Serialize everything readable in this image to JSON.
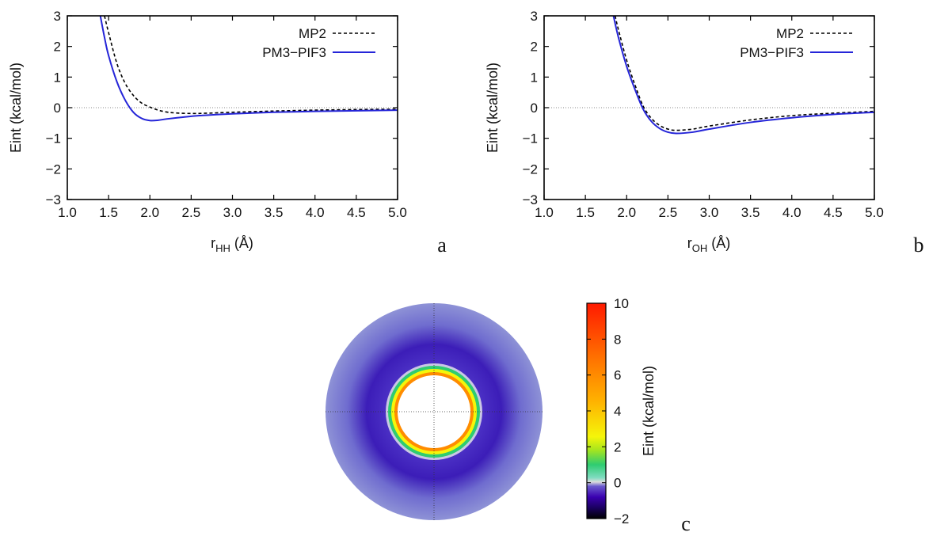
{
  "chart_data": [
    {
      "panel": "a",
      "type": "line",
      "xlabel": "r",
      "xlabel_sub": "HH",
      "xlabel_unit": "(Å)",
      "ylabel": "Eint (kcal/mol)",
      "xlim": [
        1.0,
        5.0
      ],
      "ylim": [
        -3,
        3
      ],
      "xticks": [
        "1.0",
        "1.5",
        "2.0",
        "2.5",
        "3.0",
        "3.5",
        "4.0",
        "4.5",
        "5.0"
      ],
      "yticks": [
        "3",
        "2",
        "1",
        "0",
        "−1",
        "−2",
        "−3"
      ],
      "legend": "top-right",
      "zero_line": true,
      "series": [
        {
          "name": "MP2",
          "style": "dashed",
          "color": "#000000",
          "x": [
            1.45,
            1.5,
            1.6,
            1.7,
            1.8,
            1.9,
            2.0,
            2.1,
            2.2,
            2.3,
            2.5,
            2.7,
            3.0,
            3.5,
            4.0,
            4.5,
            5.0
          ],
          "y": [
            3.0,
            2.45,
            1.45,
            0.8,
            0.4,
            0.15,
            0.02,
            -0.08,
            -0.14,
            -0.17,
            -0.19,
            -0.18,
            -0.15,
            -0.11,
            -0.08,
            -0.06,
            -0.05
          ]
        },
        {
          "name": "PM3−PIF3",
          "style": "solid",
          "color": "#2525d8",
          "x": [
            1.4,
            1.45,
            1.5,
            1.6,
            1.7,
            1.8,
            1.9,
            2.0,
            2.1,
            2.2,
            2.4,
            2.6,
            3.0,
            3.5,
            4.0,
            4.5,
            5.0
          ],
          "y": [
            3.0,
            2.3,
            1.7,
            0.85,
            0.25,
            -0.15,
            -0.35,
            -0.42,
            -0.41,
            -0.37,
            -0.31,
            -0.26,
            -0.2,
            -0.15,
            -0.12,
            -0.1,
            -0.08
          ]
        }
      ]
    },
    {
      "panel": "b",
      "type": "line",
      "xlabel": "r",
      "xlabel_sub": "OH",
      "xlabel_unit": "(Å)",
      "ylabel": "Eint (kcal/mol)",
      "xlim": [
        1.0,
        5.0
      ],
      "ylim": [
        -3,
        3
      ],
      "xticks": [
        "1.0",
        "1.5",
        "2.0",
        "2.5",
        "3.0",
        "3.5",
        "4.0",
        "4.5",
        "5.0"
      ],
      "yticks": [
        "3",
        "2",
        "1",
        "0",
        "−1",
        "−2",
        "−3"
      ],
      "legend": "top-right",
      "zero_line": true,
      "series": [
        {
          "name": "MP2",
          "style": "dashed",
          "color": "#000000",
          "x": [
            1.86,
            1.9,
            2.0,
            2.1,
            2.2,
            2.3,
            2.4,
            2.5,
            2.6,
            2.8,
            3.0,
            3.5,
            4.0,
            4.5,
            5.0
          ],
          "y": [
            3.0,
            2.55,
            1.55,
            0.75,
            0.05,
            -0.35,
            -0.58,
            -0.7,
            -0.74,
            -0.7,
            -0.6,
            -0.4,
            -0.26,
            -0.18,
            -0.12
          ]
        },
        {
          "name": "PM3−PIF3",
          "style": "solid",
          "color": "#2525d8",
          "x": [
            1.84,
            1.9,
            2.0,
            2.1,
            2.2,
            2.3,
            2.4,
            2.5,
            2.6,
            2.8,
            3.0,
            3.5,
            4.0,
            4.5,
            5.0
          ],
          "y": [
            3.0,
            2.3,
            1.35,
            0.6,
            -0.05,
            -0.45,
            -0.68,
            -0.8,
            -0.84,
            -0.8,
            -0.7,
            -0.48,
            -0.33,
            -0.22,
            -0.15
          ]
        }
      ]
    },
    {
      "panel": "c",
      "type": "heatmap",
      "colorbar_label": "Eint (kcal/mol)",
      "colorbar_range": [
        -2,
        10
      ],
      "colorbar_ticks": [
        "10",
        "8",
        "6",
        "4",
        "2",
        "0",
        "−2"
      ],
      "colorbar_stops": [
        "#000000",
        "#3a00b0",
        "#6a5acd",
        "#dcdcdc",
        "#2ecc71",
        "#f5f50a",
        "#ff9a00",
        "#ff1a00"
      ]
    }
  ],
  "panel_labels": [
    "a",
    "b",
    "c"
  ]
}
